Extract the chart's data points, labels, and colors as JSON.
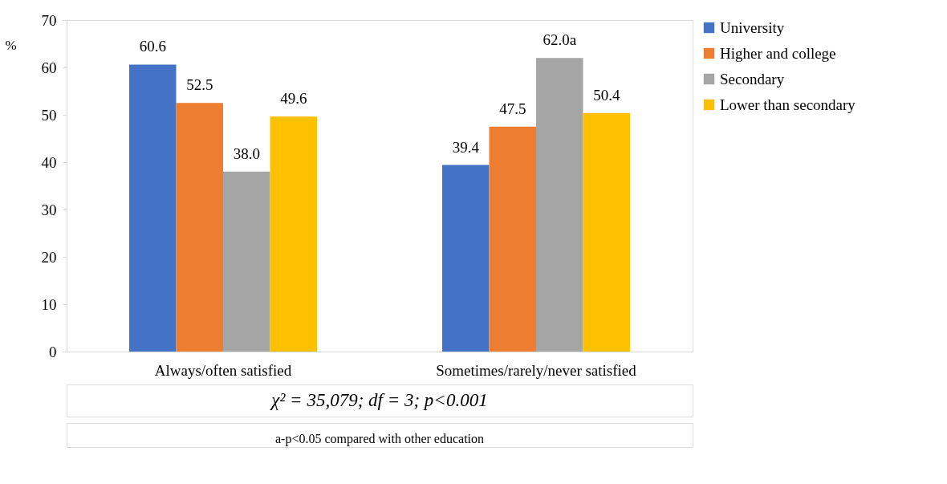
{
  "chart_data": {
    "type": "bar",
    "ylabel": "%",
    "categories": [
      "Always/often satisfied",
      "Sometimes/rarely/never satisfied"
    ],
    "series": [
      {
        "name": "University",
        "color": "#4472c4",
        "values": [
          60.6,
          39.4
        ],
        "value_labels": [
          "60.6",
          "39.4"
        ]
      },
      {
        "name": "Higher and college",
        "color": "#ed7d31",
        "values": [
          52.5,
          47.5
        ],
        "value_labels": [
          "52.5",
          "47.5"
        ]
      },
      {
        "name": "Secondary",
        "color": "#a5a5a5",
        "values": [
          38.0,
          62.0
        ],
        "value_labels": [
          "38.0",
          "62.0a"
        ]
      },
      {
        "name": "Lower than secondary",
        "color": "#ffc000",
        "values": [
          49.6,
          50.4
        ],
        "value_labels": [
          "49.6",
          "50.4"
        ]
      }
    ],
    "ylim": [
      0,
      70
    ],
    "yticks": [
      0,
      10,
      20,
      30,
      40,
      50,
      60,
      70
    ],
    "grid": false,
    "legend": "right",
    "annotations": [
      "χ² = 35,079; df = 3; p<0.001",
      "a-p<0.05 compared with other education"
    ]
  }
}
